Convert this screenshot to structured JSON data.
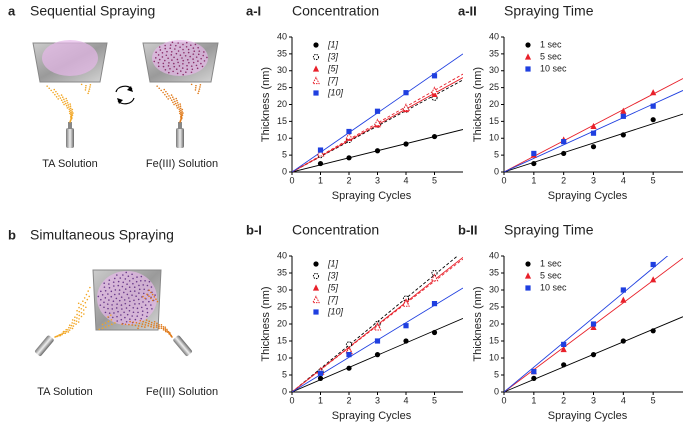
{
  "panels": [
    {
      "label": "a",
      "title": "Sequential Spraying",
      "captions": [
        "TA Solution",
        "Fe(III) Solution"
      ]
    },
    {
      "label": "b",
      "title": "Simultaneous Spraying",
      "captions": [
        "TA Solution",
        "Fe(III) Solution"
      ]
    }
  ],
  "chart_data": [
    {
      "type": "scatter",
      "panel_label": "a-I",
      "title": "Concentration",
      "x_label": "Spraying Cycles",
      "y_label": "Thickness (nm)",
      "xlim": [
        0,
        6
      ],
      "xticks": [
        0,
        1,
        2,
        3,
        4,
        5
      ],
      "ylim": [
        0,
        40
      ],
      "yticks": [
        0,
        5,
        10,
        15,
        20,
        25,
        30,
        35,
        40
      ],
      "x": [
        1,
        2,
        3,
        4,
        5
      ],
      "series": [
        {
          "name": "[1]",
          "color": "#000000",
          "marker": "circle",
          "fit": "solid",
          "values": [
            2.5,
            4.2,
            6.3,
            8.3,
            10.5
          ]
        },
        {
          "name": "[3]",
          "color": "#000000",
          "marker": "open-circle",
          "fit": "dashed",
          "values": [
            5,
            9.5,
            14,
            18.5,
            22
          ]
        },
        {
          "name": "[5]",
          "color": "#e8202a",
          "marker": "triangle",
          "fit": "solid",
          "values": [
            5.5,
            10,
            14,
            18.5,
            23
          ]
        },
        {
          "name": "[7]",
          "color": "#e8202a",
          "marker": "open-triangle",
          "fit": "dashed",
          "values": [
            5.5,
            10.5,
            14.5,
            19,
            24
          ]
        },
        {
          "name": "[10]",
          "color": "#1f3fe0",
          "marker": "square",
          "fit": "solid",
          "values": [
            6.5,
            12,
            18,
            23.5,
            28.5
          ]
        }
      ]
    },
    {
      "type": "scatter",
      "panel_label": "a-II",
      "title": "Spraying Time",
      "x_label": "Spraying Cycles",
      "y_label": "Thickness (nm)",
      "xlim": [
        0,
        6
      ],
      "xticks": [
        0,
        1,
        2,
        3,
        4,
        5
      ],
      "ylim": [
        0,
        40
      ],
      "yticks": [
        0,
        5,
        10,
        15,
        20,
        25,
        30,
        35,
        40
      ],
      "x": [
        1,
        2,
        3,
        4,
        5
      ],
      "series": [
        {
          "name": "1 sec",
          "color": "#000000",
          "marker": "circle",
          "fit": "solid",
          "values": [
            2.5,
            5.5,
            7.5,
            11,
            15.5
          ]
        },
        {
          "name": "5 sec",
          "color": "#e8202a",
          "marker": "triangle",
          "fit": "solid",
          "values": [
            5,
            9.5,
            13.5,
            18,
            23.5
          ]
        },
        {
          "name": "10 sec",
          "color": "#1f3fe0",
          "marker": "square",
          "fit": "solid",
          "values": [
            5.5,
            9,
            11.5,
            16.5,
            19.5
          ]
        }
      ]
    },
    {
      "type": "scatter",
      "panel_label": "b-I",
      "title": "Concentration",
      "x_label": "Spraying Cycles",
      "y_label": "Thickness (nm)",
      "xlim": [
        0,
        6
      ],
      "xticks": [
        0,
        1,
        2,
        3,
        4,
        5
      ],
      "ylim": [
        0,
        40
      ],
      "yticks": [
        0,
        5,
        10,
        15,
        20,
        25,
        30,
        35,
        40
      ],
      "x": [
        1,
        2,
        3,
        4,
        5
      ],
      "series": [
        {
          "name": "[1]",
          "color": "#000000",
          "marker": "circle",
          "fit": "solid",
          "values": [
            4,
            7,
            11,
            15,
            17.5
          ]
        },
        {
          "name": "[3]",
          "color": "#000000",
          "marker": "open-circle",
          "fit": "dashed",
          "values": [
            6,
            14,
            20,
            27.5,
            35
          ]
        },
        {
          "name": "[5]",
          "color": "#e8202a",
          "marker": "triangle",
          "fit": "solid",
          "values": [
            6,
            12.5,
            19.5,
            26.5,
            33.5
          ]
        },
        {
          "name": "[7]",
          "color": "#e8202a",
          "marker": "open-triangle",
          "fit": "dashed",
          "values": [
            6,
            12,
            19,
            26,
            33.5
          ]
        },
        {
          "name": "[10]",
          "color": "#1f3fe0",
          "marker": "square",
          "fit": "solid",
          "values": [
            5.5,
            11,
            15,
            19.5,
            26
          ]
        }
      ]
    },
    {
      "type": "scatter",
      "panel_label": "b-II",
      "title": "Spraying Time",
      "x_label": "Spraying Cycles",
      "y_label": "Thickness (nm)",
      "xlim": [
        0,
        6
      ],
      "xticks": [
        0,
        1,
        2,
        3,
        4,
        5
      ],
      "ylim": [
        0,
        40
      ],
      "yticks": [
        0,
        5,
        10,
        15,
        20,
        25,
        30,
        35,
        40
      ],
      "x": [
        1,
        2,
        3,
        4,
        5
      ],
      "series": [
        {
          "name": "1 sec",
          "color": "#000000",
          "marker": "circle",
          "fit": "solid",
          "values": [
            4,
            8,
            11,
            15,
            18
          ]
        },
        {
          "name": "5 sec",
          "color": "#e8202a",
          "marker": "triangle",
          "fit": "solid",
          "values": [
            6,
            12.5,
            19,
            27,
            33
          ]
        },
        {
          "name": "10 sec",
          "color": "#1f3fe0",
          "marker": "square",
          "fit": "solid",
          "values": [
            6,
            14,
            20,
            30,
            37.5
          ]
        }
      ]
    }
  ]
}
